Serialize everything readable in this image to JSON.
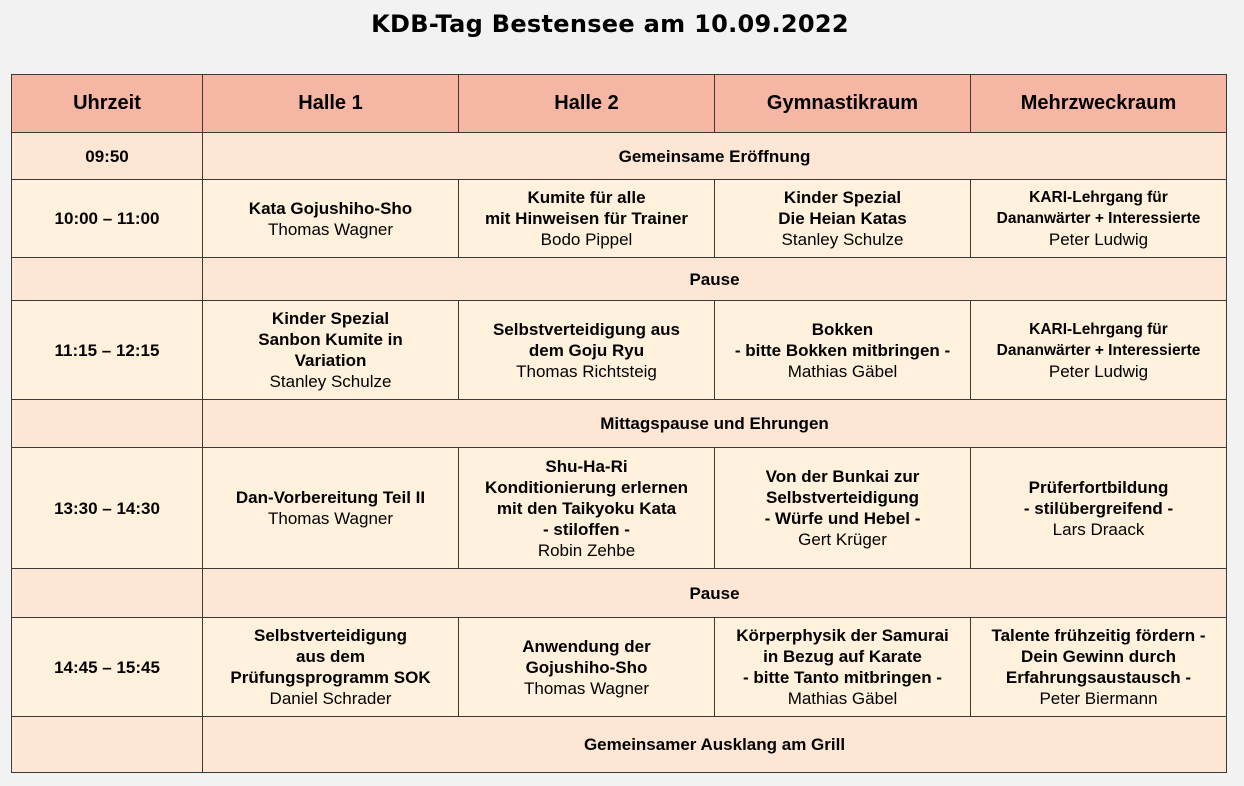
{
  "title": "KDB-Tag Bestensee am 10.09.2022",
  "columns": [
    "Uhrzeit",
    "Halle 1",
    "Halle 2",
    "Gymnastikraum",
    "Mehrzweckraum"
  ],
  "rows": [
    {
      "type": "break",
      "time": "09:50",
      "label": "Gemeinsame Eröffnung"
    },
    {
      "type": "session",
      "time": "10:00 – 11:00",
      "cells": [
        {
          "title": "Kata Gojushiho-Sho",
          "person": "Thomas Wagner"
        },
        {
          "title": "Kumite für alle\nmit Hinweisen für Trainer",
          "person": "Bodo Pippel"
        },
        {
          "title": "Kinder Spezial\nDie Heian Katas",
          "person": "Stanley Schulze"
        },
        {
          "title": "KARI-Lehrgang für\nDananwärter + Interessierte",
          "person": "Peter Ludwig"
        }
      ]
    },
    {
      "type": "break",
      "time": "",
      "label": "Pause"
    },
    {
      "type": "session",
      "time": "11:15 – 12:15",
      "cells": [
        {
          "title": "Kinder Spezial\nSanbon Kumite in\nVariation",
          "person": "Stanley Schulze"
        },
        {
          "title": "Selbstverteidigung aus\ndem Goju Ryu",
          "person": "Thomas Richtsteig"
        },
        {
          "title": "Bokken\n- bitte Bokken mitbringen -",
          "person": "Mathias Gäbel"
        },
        {
          "title": "KARI-Lehrgang für\nDananwärter + Interessierte",
          "person": "Peter Ludwig"
        }
      ]
    },
    {
      "type": "break",
      "time": "",
      "label": "Mittagspause und Ehrungen"
    },
    {
      "type": "session",
      "time": "13:30 – 14:30",
      "cells": [
        {
          "title": "Dan-Vorbereitung Teil II",
          "person": "Thomas Wagner"
        },
        {
          "title": "Shu-Ha-Ri\nKonditionierung erlernen\nmit den Taikyoku Kata\n- stiloffen -",
          "person": "Robin Zehbe"
        },
        {
          "title": "Von der Bunkai zur\nSelbstverteidigung\n- Würfe und Hebel -",
          "person": "Gert Krüger"
        },
        {
          "title": "Prüferfortbildung\n- stilübergreifend -",
          "person": "Lars Draack"
        }
      ]
    },
    {
      "type": "break",
      "time": "",
      "label": "Pause"
    },
    {
      "type": "session",
      "time": "14:45 – 15:45",
      "cells": [
        {
          "title": "Selbstverteidigung\naus dem\nPrüfungsprogramm SOK",
          "person": "Daniel Schrader"
        },
        {
          "title": "Anwendung der\nGojushiho-Sho",
          "person": "Thomas Wagner"
        },
        {
          "title": "Körperphysik der Samurai\nin Bezug auf Karate\n- bitte Tanto mitbringen -",
          "person": "Mathias Gäbel"
        },
        {
          "title": "Talente frühzeitig fördern -\nDein Gewinn durch\nErfahrungsaustausch -",
          "person": "Peter Biermann"
        }
      ]
    },
    {
      "type": "break",
      "time": "",
      "label": "Gemeinsamer Ausklang am Grill"
    }
  ],
  "colors": {
    "header": "#f5b6a4",
    "break_row": "#fde6d4",
    "session_row": "#fff1dc",
    "background": "#f2f2f2"
  }
}
